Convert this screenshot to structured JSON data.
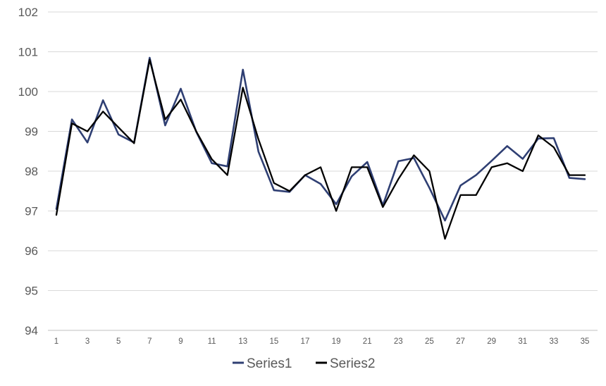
{
  "chart_data": {
    "type": "line",
    "x": [
      1,
      2,
      3,
      4,
      5,
      6,
      7,
      8,
      9,
      10,
      11,
      12,
      13,
      14,
      15,
      16,
      17,
      18,
      19,
      20,
      21,
      22,
      23,
      24,
      25,
      26,
      27,
      28,
      29,
      30,
      31,
      32,
      33,
      34,
      35
    ],
    "x_tick_labels": [
      "1",
      "3",
      "5",
      "7",
      "9",
      "11",
      "13",
      "15",
      "17",
      "19",
      "21",
      "23",
      "25",
      "27",
      "29",
      "31",
      "33",
      "35"
    ],
    "ylim": [
      94,
      102
    ],
    "y_ticks": [
      94,
      95,
      96,
      97,
      98,
      99,
      100,
      101,
      102
    ],
    "grid": true,
    "legend_position": "bottom",
    "series": [
      {
        "name": "Series1",
        "color": "#2f3f73",
        "values": [
          97.05,
          99.3,
          98.72,
          99.78,
          98.92,
          98.72,
          100.85,
          99.15,
          100.07,
          98.99,
          98.2,
          98.12,
          100.55,
          98.49,
          97.52,
          97.48,
          97.9,
          97.68,
          97.17,
          97.87,
          98.23,
          97.14,
          98.25,
          98.33,
          97.58,
          96.76,
          97.64,
          97.9,
          98.26,
          98.63,
          98.31,
          98.82,
          98.83,
          97.83,
          97.8
        ]
      },
      {
        "name": "Series2",
        "color": "#000000",
        "values": [
          96.9,
          99.2,
          99.0,
          99.5,
          99.1,
          98.7,
          100.8,
          99.3,
          99.8,
          99.0,
          98.3,
          97.9,
          100.1,
          98.8,
          97.7,
          97.5,
          97.9,
          98.1,
          97.0,
          98.1,
          98.1,
          97.1,
          97.8,
          98.4,
          98.0,
          96.3,
          97.4,
          97.4,
          98.1,
          98.2,
          98.0,
          98.9,
          98.6,
          97.9,
          97.9
        ]
      }
    ]
  }
}
